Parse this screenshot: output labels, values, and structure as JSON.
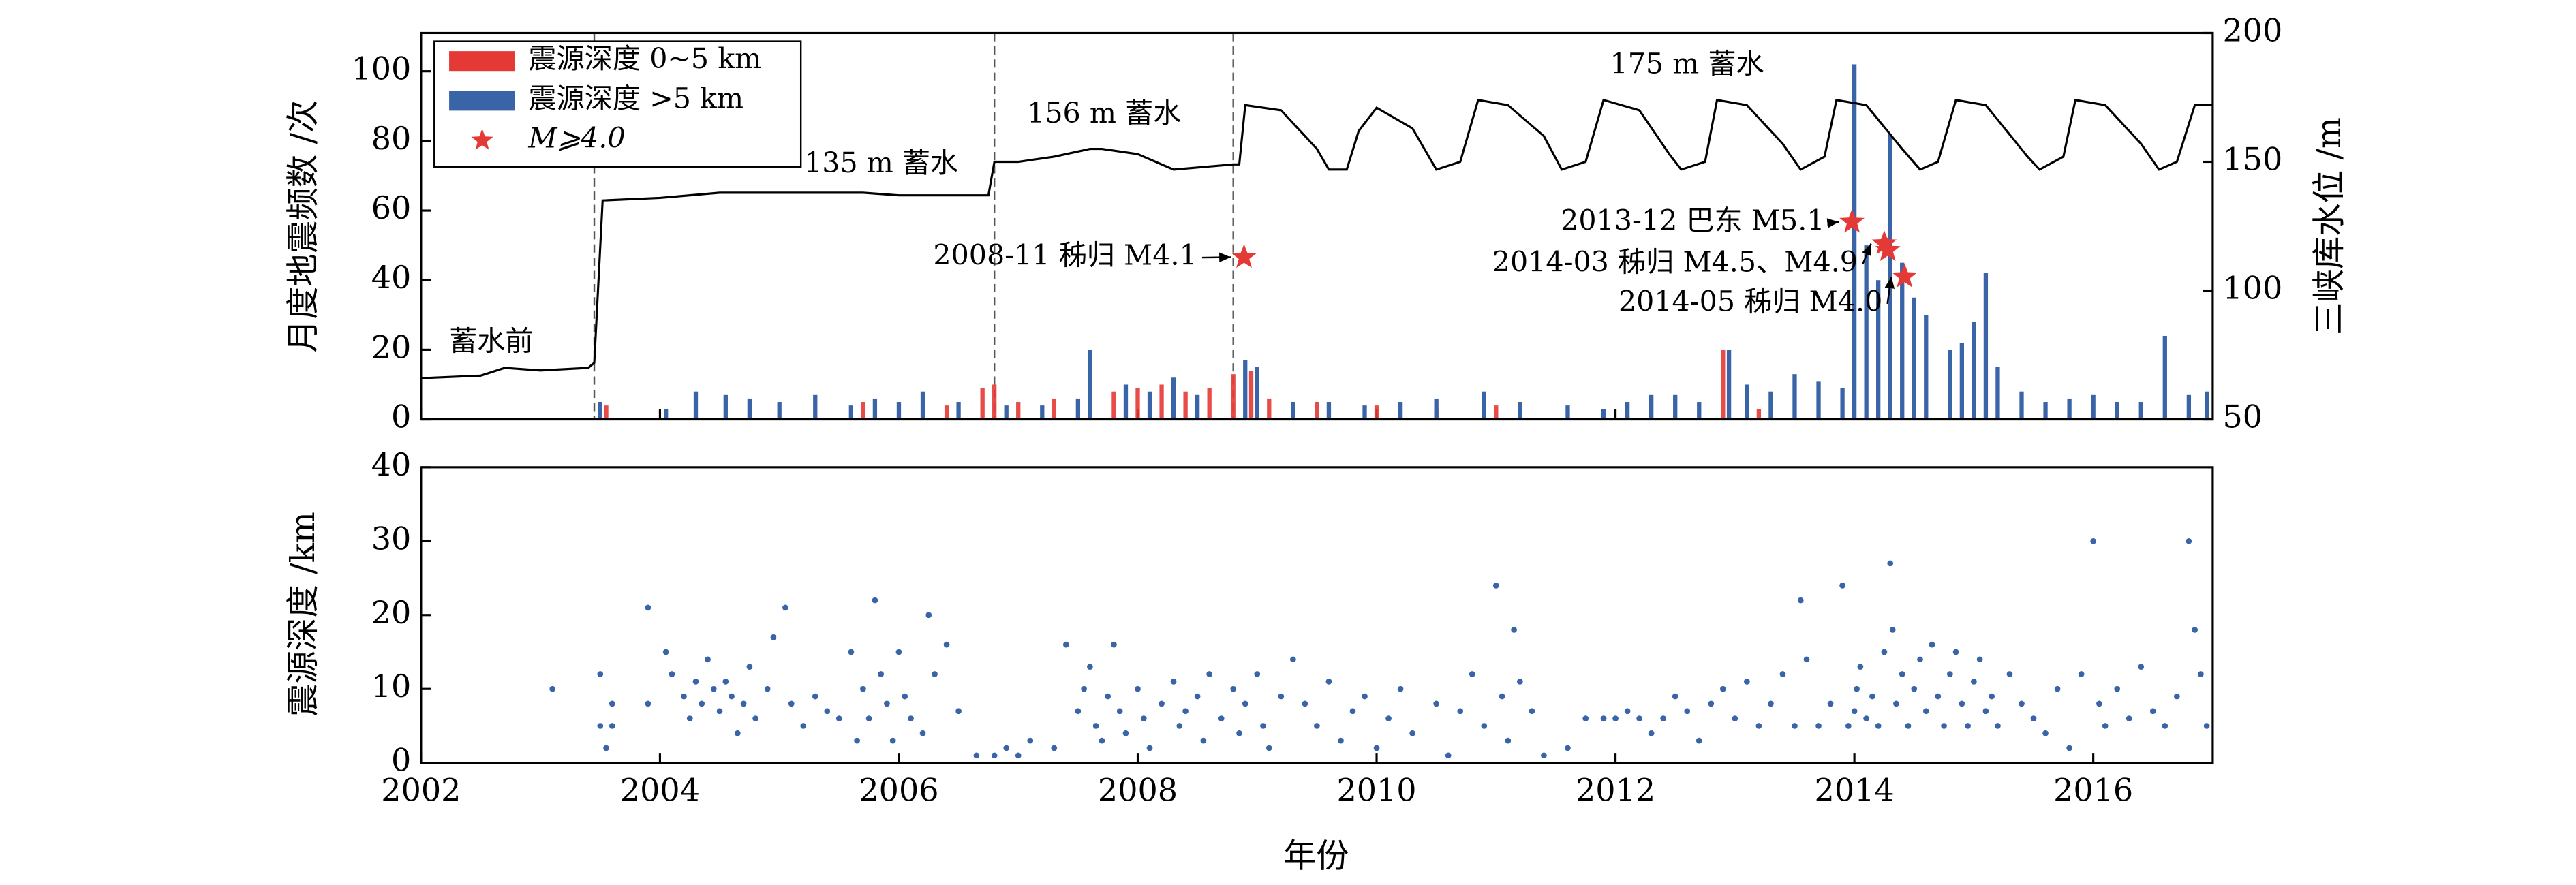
{
  "chart_data": [
    {
      "type": "bar",
      "xlim": [
        2002,
        2017
      ],
      "ylim": [
        0,
        111
      ],
      "yticks": [
        0,
        20,
        40,
        60,
        80,
        100
      ],
      "y2lim": [
        50,
        200
      ],
      "y2ticks": [
        50,
        100,
        150,
        200
      ],
      "ylabel": "月度地震频数 /次",
      "y2label": "三峡库水位 /m",
      "series": [
        {
          "name": "震源深度 0~5 km",
          "color": "#e53935",
          "x": [
            2003.55,
            2005.7,
            2006.4,
            2006.7,
            2006.8,
            2007.0,
            2007.3,
            2007.6,
            2007.8,
            2008.0,
            2008.2,
            2008.4,
            2008.6,
            2008.8,
            2008.95,
            2009.1,
            2009.5,
            2010.0,
            2010.5,
            2011.0,
            2012.9,
            2013.2
          ],
          "values": [
            4,
            5,
            4,
            9,
            10,
            5,
            6,
            10,
            8,
            9,
            10,
            8,
            9,
            13,
            14,
            6,
            5,
            4,
            3,
            4,
            20,
            3
          ]
        },
        {
          "name": "震源深度 >5 km",
          "color": "#3a64a8",
          "x": [
            2003.5,
            2004.05,
            2004.3,
            2004.55,
            2004.75,
            2005.0,
            2005.3,
            2005.6,
            2005.8,
            2006.0,
            2006.2,
            2006.5,
            2006.9,
            2007.2,
            2007.5,
            2007.6,
            2007.9,
            2008.1,
            2008.3,
            2008.5,
            2008.9,
            2009.0,
            2009.3,
            2009.6,
            2009.9,
            2010.2,
            2010.5,
            2010.9,
            2011.2,
            2011.6,
            2011.9,
            2012.1,
            2012.3,
            2012.5,
            2012.7,
            2012.95,
            2013.1,
            2013.3,
            2013.5,
            2013.7,
            2013.9,
            2014.0,
            2014.1,
            2014.2,
            2014.3,
            2014.4,
            2014.5,
            2014.6,
            2014.8,
            2014.9,
            2015.0,
            2015.1,
            2015.2,
            2015.4,
            2015.6,
            2015.8,
            2016.0,
            2016.2,
            2016.4,
            2016.6,
            2016.8,
            2016.95
          ],
          "values": [
            5,
            3,
            8,
            7,
            6,
            5,
            7,
            4,
            6,
            5,
            8,
            5,
            4,
            4,
            6,
            20,
            10,
            8,
            12,
            7,
            17,
            15,
            5,
            5,
            4,
            5,
            6,
            8,
            5,
            4,
            3,
            5,
            7,
            7,
            5,
            20,
            10,
            8,
            13,
            11,
            9,
            102,
            50,
            40,
            82,
            45,
            35,
            30,
            20,
            22,
            28,
            42,
            15,
            8,
            5,
            6,
            7,
            5,
            5,
            24,
            7,
            8
          ]
        },
        {
          "type": "line",
          "axis": "y2",
          "color": "#000000",
          "x": [
            2002.0,
            2002.5,
            2002.7,
            2003.0,
            2003.4,
            2003.45,
            2003.52,
            2004.0,
            2004.5,
            2005.0,
            2005.7,
            2006.0,
            2006.75,
            2006.8,
            2007.0,
            2007.3,
            2007.6,
            2007.7,
            2008.0,
            2008.3,
            2008.8,
            2008.85,
            2008.9,
            2009.2,
            2009.5,
            2009.6,
            2009.75,
            2009.85,
            2010.0,
            2010.3,
            2010.5,
            2010.7,
            2010.85,
            2011.1,
            2011.4,
            2011.55,
            2011.75,
            2011.9,
            2012.2,
            2012.45,
            2012.55,
            2012.75,
            2012.85,
            2013.1,
            2013.4,
            2013.55,
            2013.75,
            2013.85,
            2014.1,
            2014.4,
            2014.55,
            2014.7,
            2014.85,
            2015.1,
            2015.45,
            2015.55,
            2015.75,
            2015.85,
            2016.1,
            2016.4,
            2016.55,
            2016.7,
            2016.85,
            2017.0
          ],
          "values": [
            66,
            67,
            70,
            69,
            70,
            72,
            135,
            136,
            138,
            138,
            138,
            137,
            137,
            150,
            150,
            152,
            155,
            155,
            153,
            147,
            149,
            149,
            172,
            170,
            155,
            147,
            147,
            162,
            171,
            163,
            147,
            150,
            174,
            172,
            160,
            147,
            150,
            174,
            170,
            153,
            147,
            150,
            174,
            172,
            157,
            147,
            152,
            174,
            172,
            155,
            147,
            150,
            174,
            172,
            152,
            147,
            152,
            174,
            172,
            157,
            147,
            150,
            172,
            172
          ]
        }
      ],
      "stars": {
        "name": "M⩾4.0",
        "color": "#e53935",
        "x": [
          2008.89,
          2013.98,
          2014.25,
          2014.28,
          2014.42
        ],
        "values": [
          46.6,
          56.7,
          50.5,
          48.6,
          41
        ],
        "labels": [
          "2008-11 秭归 M4.1",
          "2013-12 巴东 M5.1",
          "2014-03 秭归 M4.5、M4.9",
          "2014-05 秭归 M4.0"
        ]
      },
      "annotations": [
        "蓄水前",
        "135 m 蓄水",
        "156 m 蓄水",
        "175 m 蓄水"
      ],
      "vlines": [
        2003.45,
        2006.8,
        2008.8
      ]
    },
    {
      "type": "scatter",
      "xlim": [
        2002,
        2017
      ],
      "xticks": [
        2002,
        2004,
        2006,
        2008,
        2010,
        2012,
        2014,
        2016
      ],
      "ylim": [
        0,
        40
      ],
      "yticks": [
        0,
        10,
        20,
        30,
        40
      ],
      "ylabel": "震源深度 /km",
      "xlabel": "年份",
      "color": "#3a64a8",
      "x": [
        2003.1,
        2003.5,
        2003.5,
        2003.55,
        2003.6,
        2003.6,
        2003.9,
        2003.9,
        2004.05,
        2004.1,
        2004.2,
        2004.25,
        2004.3,
        2004.35,
        2004.4,
        2004.45,
        2004.5,
        2004.55,
        2004.6,
        2004.65,
        2004.7,
        2004.75,
        2004.8,
        2004.9,
        2004.95,
        2005.05,
        2005.1,
        2005.2,
        2005.3,
        2005.4,
        2005.5,
        2005.6,
        2005.65,
        2005.7,
        2005.75,
        2005.8,
        2005.85,
        2005.9,
        2005.95,
        2006.0,
        2006.05,
        2006.1,
        2006.2,
        2006.25,
        2006.3,
        2006.4,
        2006.5,
        2006.65,
        2006.8,
        2006.9,
        2007.0,
        2007.1,
        2007.3,
        2007.4,
        2007.5,
        2007.55,
        2007.6,
        2007.65,
        2007.7,
        2007.75,
        2007.8,
        2007.85,
        2007.9,
        2008.0,
        2008.05,
        2008.1,
        2008.2,
        2008.3,
        2008.35,
        2008.4,
        2008.5,
        2008.55,
        2008.6,
        2008.7,
        2008.8,
        2008.85,
        2008.9,
        2009.0,
        2009.05,
        2009.1,
        2009.2,
        2009.3,
        2009.4,
        2009.5,
        2009.6,
        2009.7,
        2009.8,
        2009.9,
        2010.0,
        2010.1,
        2010.2,
        2010.3,
        2010.5,
        2010.6,
        2010.7,
        2010.8,
        2010.9,
        2011.0,
        2011.05,
        2011.1,
        2011.15,
        2011.2,
        2011.3,
        2011.4,
        2011.6,
        2011.75,
        2011.9,
        2012.0,
        2012.1,
        2012.2,
        2012.3,
        2012.4,
        2012.5,
        2012.6,
        2012.7,
        2012.8,
        2012.9,
        2013.0,
        2013.1,
        2013.2,
        2013.3,
        2013.4,
        2013.5,
        2013.55,
        2013.6,
        2013.7,
        2013.8,
        2013.9,
        2013.95,
        2014.0,
        2014.02,
        2014.05,
        2014.1,
        2014.15,
        2014.2,
        2014.25,
        2014.3,
        2014.32,
        2014.35,
        2014.4,
        2014.45,
        2014.5,
        2014.55,
        2014.6,
        2014.65,
        2014.7,
        2014.75,
        2014.8,
        2014.85,
        2014.9,
        2014.95,
        2015.0,
        2015.05,
        2015.1,
        2015.15,
        2015.2,
        2015.3,
        2015.4,
        2015.5,
        2015.6,
        2015.7,
        2015.8,
        2015.9,
        2016.0,
        2016.05,
        2016.1,
        2016.2,
        2016.3,
        2016.4,
        2016.5,
        2016.6,
        2016.7,
        2016.8,
        2016.85,
        2016.9,
        2016.95
      ],
      "values": [
        10,
        12,
        5,
        2,
        8,
        5,
        21,
        8,
        15,
        12,
        9,
        6,
        11,
        8,
        14,
        10,
        7,
        11,
        9,
        4,
        8,
        13,
        6,
        10,
        17,
        21,
        8,
        5,
        9,
        7,
        6,
        15,
        3,
        10,
        6,
        22,
        12,
        8,
        3,
        15,
        9,
        6,
        4,
        20,
        12,
        16,
        7,
        1,
        1,
        2,
        1,
        3,
        2,
        16,
        7,
        10,
        13,
        5,
        3,
        9,
        16,
        7,
        4,
        10,
        6,
        2,
        8,
        11,
        5,
        7,
        9,
        3,
        12,
        6,
        10,
        4,
        8,
        12,
        5,
        2,
        9,
        14,
        8,
        5,
        11,
        3,
        7,
        9,
        2,
        6,
        10,
        4,
        8,
        1,
        7,
        12,
        5,
        24,
        9,
        3,
        18,
        11,
        7,
        1,
        2,
        6,
        6,
        6,
        7,
        6,
        4,
        6,
        9,
        7,
        3,
        8,
        10,
        6,
        11,
        5,
        8,
        12,
        5,
        22,
        14,
        5,
        8,
        24,
        5,
        7,
        10,
        13,
        6,
        9,
        5,
        15,
        27,
        18,
        8,
        12,
        5,
        10,
        14,
        7,
        16,
        9,
        5,
        12,
        15,
        8,
        5,
        11,
        14,
        7,
        9,
        5,
        12,
        8,
        6,
        4,
        10,
        2,
        12,
        30,
        8,
        5,
        10,
        6,
        13,
        7,
        5,
        9,
        30,
        18,
        12,
        5
      ]
    }
  ]
}
